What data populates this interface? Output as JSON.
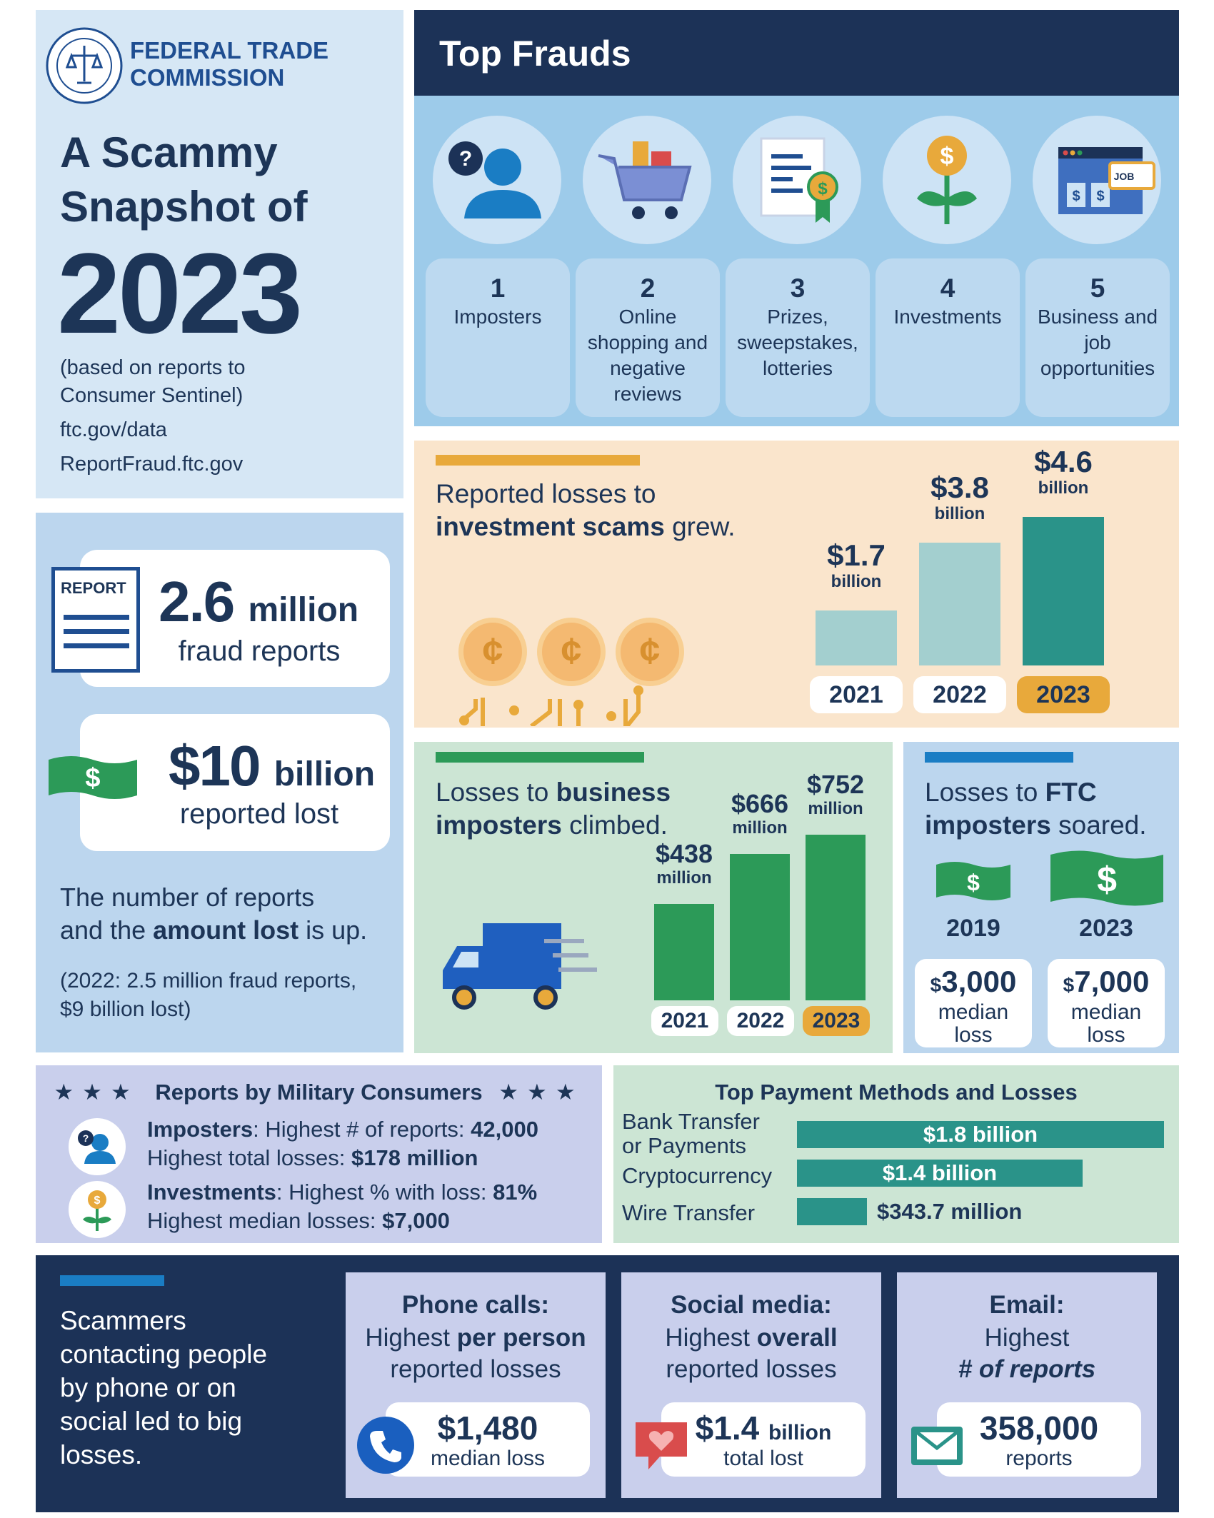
{
  "intro": {
    "agency_line1": "FEDERAL TRADE",
    "agency_line2": "COMMISSION",
    "title_line1": "A Scammy",
    "title_line2": "Snapshot of",
    "year": "2023",
    "basis_line1": "(based on reports to",
    "basis_line2": "Consumer Sentinel)",
    "link1": "ftc.gov/data",
    "link2": "ReportFraud.ftc.gov"
  },
  "top_frauds": {
    "title": "Top Frauds",
    "items": [
      {
        "rank": "1",
        "label": "Imposters",
        "icon": "imposter-icon"
      },
      {
        "rank": "2",
        "label": "Online shopping and negative reviews",
        "icon": "shopping-cart-icon"
      },
      {
        "rank": "3",
        "label": "Prizes, sweepstakes, lotteries",
        "icon": "prize-certificate-icon"
      },
      {
        "rank": "4",
        "label": "Investments",
        "icon": "money-plant-icon"
      },
      {
        "rank": "5",
        "label": "Business and job opportunities",
        "icon": "job-listing-icon"
      }
    ]
  },
  "stats": {
    "report_icon_word": "REPORT",
    "reports_value": "2.6",
    "reports_unit": "million",
    "reports_label": "fraud reports",
    "loss_value": "$10",
    "loss_unit": "billion",
    "loss_label": "reported lost",
    "note_line1": "The number of reports",
    "note_line2_pre": "and the ",
    "note_line2_bold": "amount lost",
    "note_line2_post": " is up.",
    "prev_line1": "(2022: 2.5 million fraud reports,",
    "prev_line2": "$9 billion lost)"
  },
  "investment": {
    "text_line1": "Reported losses to",
    "text_bold": "investment scams",
    "text_post": " grew.",
    "accent_color": "#e8a93b"
  },
  "business_imposters": {
    "text_pre": "Losses to ",
    "text_bold1": "business",
    "text_bold2": "imposters",
    "text_post": " climbed.",
    "accent_color": "#2c9a58"
  },
  "ftc_imposters": {
    "text_pre": "Losses to ",
    "text_bold1": "FTC",
    "text_bold2": "imposters",
    "text_post": " soared.",
    "accent_color": "#1a7dc4",
    "years": [
      "2019",
      "2023"
    ],
    "cash_symbol": "$",
    "median": [
      {
        "value": "3,000",
        "label_line1": "median",
        "label_line2": "loss"
      },
      {
        "value": "7,000",
        "label_line1": "median",
        "label_line2": "loss"
      }
    ]
  },
  "military": {
    "title": "Reports by Military Consumers",
    "imposters_label": "Imposters",
    "imposters_line1_mid": ": Highest # of reports: ",
    "imposters_reports": "42,000",
    "imposters_line2_pre": "Highest total losses: ",
    "imposters_losses": "$178 million",
    "investments_label": "Investments",
    "investments_line1_mid": ": Highest % with loss: ",
    "investments_pct": "81%",
    "investments_line2_pre": "Highest median losses: ",
    "investments_median": "$7,000"
  },
  "payments": {
    "title": "Top Payment Methods and Losses",
    "methods": [
      {
        "label_line1": "Bank Transfer",
        "label_line2": "or Payments",
        "value": "$1.8 billion"
      },
      {
        "label_line1": "Cryptocurrency",
        "label_line2": "",
        "value": "$1.4 billion"
      },
      {
        "label_line1": "Wire Transfer",
        "label_line2": "",
        "value": "$343.7 million"
      }
    ]
  },
  "contact": {
    "text_line1": "Scammers",
    "text_line2": "contacting people",
    "text_line3": "by phone or on",
    "text_line4": "social led to big",
    "text_line5": "losses.",
    "accent_color": "#1a7dc4",
    "cards": [
      {
        "head": "Phone calls:",
        "sub_pre": "Highest ",
        "sub_bold": "per person",
        "sub_line2": "reported losses",
        "value": "$1,480",
        "unit": "",
        "label": "median loss",
        "icon": "phone-icon"
      },
      {
        "head": "Social media:",
        "sub_pre": "Highest ",
        "sub_bold": "overall",
        "sub_line2": "reported losses",
        "value": "$1.4",
        "unit": "billion",
        "label": "total lost",
        "icon": "heart-speech-bubble-icon"
      },
      {
        "head": "Email:",
        "sub_pre": "Highest",
        "sub_bold": "",
        "sub_line2": "# of reports",
        "value": "358,000",
        "unit": "",
        "label": "reports",
        "icon": "envelope-icon"
      }
    ]
  },
  "chart_data": [
    {
      "type": "bar",
      "title": "Reported losses to investment scams grew.",
      "categories": [
        "2021",
        "2022",
        "2023"
      ],
      "values": [
        1.7,
        3.8,
        4.6
      ],
      "unit": "billion",
      "value_labels": [
        "$1.7",
        "$3.8",
        "$4.6"
      ],
      "ylim": [
        0,
        4.6
      ],
      "colors": [
        "#a3cfcf",
        "#a3cfcf",
        "#2a9389"
      ],
      "highlight_category": "2023"
    },
    {
      "type": "bar",
      "title": "Losses to business imposters climbed.",
      "categories": [
        "2021",
        "2022",
        "2023"
      ],
      "values": [
        438,
        666,
        752
      ],
      "unit": "million",
      "value_labels": [
        "$438",
        "$666",
        "$752"
      ],
      "ylim": [
        0,
        752
      ],
      "colors": [
        "#2c9a58",
        "#2c9a58",
        "#2c9a58"
      ],
      "highlight_category": "2023"
    },
    {
      "type": "bar",
      "orientation": "horizontal",
      "title": "Top Payment Methods and Losses",
      "categories": [
        "Bank Transfer or Payments",
        "Cryptocurrency",
        "Wire Transfer"
      ],
      "values": [
        1800,
        1400,
        343.7
      ],
      "unit": "million",
      "value_labels": [
        "$1.8 billion",
        "$1.4 billion",
        "$343.7 million"
      ],
      "colors": [
        "#2a9389"
      ]
    }
  ]
}
